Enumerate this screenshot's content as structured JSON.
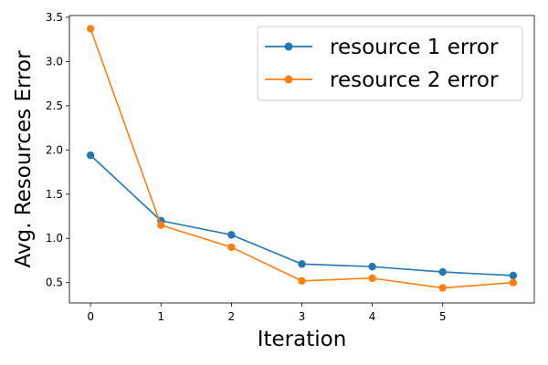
{
  "chart_data": {
    "type": "line",
    "xlabel": "Iteration",
    "ylabel": "Avg. Resources Error",
    "x": [
      0,
      1,
      2,
      3,
      4,
      5,
      6
    ],
    "x_ticks": [
      0,
      1,
      2,
      3,
      4,
      5
    ],
    "x_tick_labels": [
      "0",
      "1",
      "2",
      "3",
      "4",
      "5"
    ],
    "xlim": [
      -0.3,
      6.3
    ],
    "ylim": [
      0.27,
      3.52
    ],
    "y_ticks": [
      0.5,
      1.0,
      1.5,
      2.0,
      2.5,
      3.0,
      3.5
    ],
    "y_tick_labels": [
      "0.5",
      "1.0",
      "1.5",
      "2.0",
      "2.5",
      "3.0",
      "3.5"
    ],
    "grid": false,
    "legend_position": "top-right",
    "series": [
      {
        "name": "resource 1 error",
        "color": "#1f77b4",
        "values": [
          1.94,
          1.2,
          1.04,
          0.71,
          0.68,
          0.62,
          0.58
        ]
      },
      {
        "name": "resource 2 error",
        "color": "#ff7f0e",
        "values": [
          3.37,
          1.15,
          0.9,
          0.52,
          0.55,
          0.44,
          0.5
        ]
      }
    ]
  }
}
